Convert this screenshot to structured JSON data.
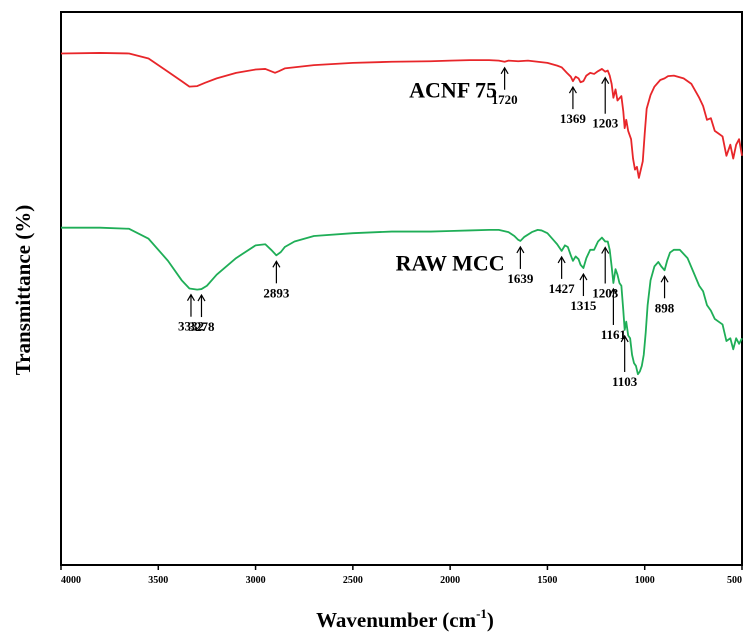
{
  "chart_data": {
    "type": "line",
    "xlabel": "Wavenumber (cm",
    "xlabel_sup": "-1",
    "xlabel_end": ")",
    "ylabel": "Transmittance (%)",
    "xlim": [
      4000,
      500
    ],
    "x_reversed": true,
    "ylim": [
      0,
      100
    ],
    "x_ticks": [
      "4000",
      "3500",
      "3000",
      "2500",
      "2000",
      "1500",
      "1000",
      "500"
    ],
    "grid": false,
    "series": [
      {
        "name": "ACNF 75",
        "color": "#e8262a",
        "points": [
          [
            4000,
            92.5
          ],
          [
            3800,
            92.6
          ],
          [
            3650,
            92.5
          ],
          [
            3550,
            91.6
          ],
          [
            3450,
            89.2
          ],
          [
            3380,
            87.5
          ],
          [
            3340,
            86.5
          ],
          [
            3300,
            86.6
          ],
          [
            3260,
            87.2
          ],
          [
            3200,
            88.0
          ],
          [
            3100,
            89.0
          ],
          [
            3000,
            89.6
          ],
          [
            2950,
            89.7
          ],
          [
            2900,
            89.0
          ],
          [
            2880,
            89.3
          ],
          [
            2850,
            89.8
          ],
          [
            2700,
            90.4
          ],
          [
            2500,
            90.8
          ],
          [
            2300,
            91.0
          ],
          [
            2100,
            91.1
          ],
          [
            2000,
            91.2
          ],
          [
            1900,
            91.3
          ],
          [
            1800,
            91.3
          ],
          [
            1750,
            91.2
          ],
          [
            1720,
            91.0
          ],
          [
            1700,
            91.2
          ],
          [
            1650,
            91.1
          ],
          [
            1600,
            91.2
          ],
          [
            1550,
            91.0
          ],
          [
            1500,
            90.8
          ],
          [
            1450,
            90.3
          ],
          [
            1427,
            90.0
          ],
          [
            1400,
            89.0
          ],
          [
            1380,
            88.3
          ],
          [
            1369,
            87.5
          ],
          [
            1355,
            88.3
          ],
          [
            1340,
            88.0
          ],
          [
            1330,
            87.3
          ],
          [
            1315,
            87.5
          ],
          [
            1300,
            88.5
          ],
          [
            1280,
            89.0
          ],
          [
            1260,
            88.8
          ],
          [
            1240,
            89.3
          ],
          [
            1220,
            89.7
          ],
          [
            1203,
            89.2
          ],
          [
            1190,
            89.4
          ],
          [
            1180,
            88.5
          ],
          [
            1170,
            87.0
          ],
          [
            1161,
            84.5
          ],
          [
            1150,
            86.0
          ],
          [
            1140,
            84.0
          ],
          [
            1120,
            84.8
          ],
          [
            1110,
            82.0
          ],
          [
            1103,
            79.0
          ],
          [
            1095,
            80.5
          ],
          [
            1085,
            78.5
          ],
          [
            1070,
            77.0
          ],
          [
            1060,
            73.5
          ],
          [
            1050,
            71.5
          ],
          [
            1040,
            72.0
          ],
          [
            1030,
            70.0
          ],
          [
            1020,
            71.5
          ],
          [
            1010,
            73.0
          ],
          [
            1000,
            78.0
          ],
          [
            990,
            82.5
          ],
          [
            970,
            85.0
          ],
          [
            950,
            86.5
          ],
          [
            920,
            87.7
          ],
          [
            898,
            88.0
          ],
          [
            880,
            88.4
          ],
          [
            850,
            88.5
          ],
          [
            800,
            88.0
          ],
          [
            760,
            87.0
          ],
          [
            720,
            84.5
          ],
          [
            700,
            83.0
          ],
          [
            680,
            80.5
          ],
          [
            660,
            80.8
          ],
          [
            640,
            78.5
          ],
          [
            620,
            78.0
          ],
          [
            600,
            77.5
          ],
          [
            580,
            74.0
          ],
          [
            560,
            76.0
          ],
          [
            545,
            73.5
          ],
          [
            530,
            76.0
          ],
          [
            515,
            77.0
          ],
          [
            500,
            74.0
          ]
        ]
      },
      {
        "name": "RAW MCC",
        "color": "#1fae57",
        "points": [
          [
            4000,
            61.0
          ],
          [
            3800,
            61.0
          ],
          [
            3650,
            60.8
          ],
          [
            3550,
            59.0
          ],
          [
            3450,
            55.0
          ],
          [
            3380,
            51.5
          ],
          [
            3340,
            50.0
          ],
          [
            3300,
            49.8
          ],
          [
            3278,
            49.9
          ],
          [
            3250,
            50.5
          ],
          [
            3200,
            52.5
          ],
          [
            3100,
            55.5
          ],
          [
            3000,
            57.8
          ],
          [
            2950,
            58.0
          ],
          [
            2920,
            57.0
          ],
          [
            2893,
            56.0
          ],
          [
            2870,
            56.6
          ],
          [
            2850,
            57.5
          ],
          [
            2800,
            58.5
          ],
          [
            2700,
            59.5
          ],
          [
            2500,
            60.0
          ],
          [
            2300,
            60.3
          ],
          [
            2100,
            60.3
          ],
          [
            2000,
            60.4
          ],
          [
            1900,
            60.5
          ],
          [
            1800,
            60.6
          ],
          [
            1750,
            60.6
          ],
          [
            1700,
            60.2
          ],
          [
            1670,
            59.5
          ],
          [
            1650,
            58.8
          ],
          [
            1639,
            58.6
          ],
          [
            1620,
            59.3
          ],
          [
            1580,
            60.2
          ],
          [
            1550,
            60.6
          ],
          [
            1530,
            60.5
          ],
          [
            1500,
            60.0
          ],
          [
            1470,
            58.8
          ],
          [
            1450,
            58.0
          ],
          [
            1427,
            56.8
          ],
          [
            1410,
            57.8
          ],
          [
            1395,
            57.5
          ],
          [
            1380,
            56.0
          ],
          [
            1369,
            55.0
          ],
          [
            1355,
            55.8
          ],
          [
            1340,
            55.3
          ],
          [
            1330,
            54.3
          ],
          [
            1315,
            53.7
          ],
          [
            1300,
            55.5
          ],
          [
            1280,
            57.0
          ],
          [
            1260,
            57.0
          ],
          [
            1240,
            58.5
          ],
          [
            1220,
            59.2
          ],
          [
            1203,
            58.5
          ],
          [
            1190,
            58.5
          ],
          [
            1180,
            57.0
          ],
          [
            1170,
            54.0
          ],
          [
            1161,
            51.0
          ],
          [
            1150,
            53.5
          ],
          [
            1140,
            52.5
          ],
          [
            1130,
            51.0
          ],
          [
            1120,
            50.5
          ],
          [
            1110,
            46.0
          ],
          [
            1103,
            42.5
          ],
          [
            1095,
            44.0
          ],
          [
            1085,
            41.5
          ],
          [
            1075,
            41.0
          ],
          [
            1065,
            38.0
          ],
          [
            1055,
            36.5
          ],
          [
            1045,
            36.0
          ],
          [
            1035,
            34.5
          ],
          [
            1025,
            35.0
          ],
          [
            1015,
            36.0
          ],
          [
            1005,
            38.0
          ],
          [
            995,
            42.0
          ],
          [
            985,
            47.0
          ],
          [
            970,
            51.5
          ],
          [
            950,
            54.0
          ],
          [
            930,
            54.8
          ],
          [
            915,
            54.0
          ],
          [
            898,
            53.3
          ],
          [
            885,
            55.0
          ],
          [
            870,
            56.5
          ],
          [
            850,
            57.0
          ],
          [
            820,
            57.0
          ],
          [
            780,
            55.5
          ],
          [
            750,
            53.0
          ],
          [
            720,
            50.5
          ],
          [
            700,
            49.5
          ],
          [
            680,
            47.0
          ],
          [
            660,
            46.0
          ],
          [
            640,
            44.5
          ],
          [
            620,
            44.0
          ],
          [
            600,
            43.5
          ],
          [
            580,
            40.5
          ],
          [
            560,
            41.0
          ],
          [
            545,
            39.0
          ],
          [
            530,
            41.0
          ],
          [
            515,
            40.0
          ],
          [
            500,
            41.0
          ]
        ]
      }
    ],
    "series_labels": [
      {
        "text": "ACNF 75",
        "x": 1985,
        "y": 84.5
      },
      {
        "text": "RAW MCC",
        "x": 2000,
        "y": 53.3
      }
    ],
    "annotations": [
      {
        "text": "1720",
        "wavenumber": 1720,
        "series": "ACNF 75",
        "direction": "below"
      },
      {
        "text": "1369",
        "wavenumber": 1369,
        "series": "ACNF 75",
        "direction": "below"
      },
      {
        "text": "1203",
        "wavenumber": 1203,
        "series": "ACNF 75",
        "direction": "below-long"
      },
      {
        "text": "3332",
        "wavenumber": 3332,
        "series": "RAW MCC",
        "direction": "below"
      },
      {
        "text": "3278",
        "wavenumber": 3278,
        "series": "RAW MCC",
        "direction": "below"
      },
      {
        "text": "2893",
        "wavenumber": 2893,
        "series": "RAW MCC",
        "direction": "below"
      },
      {
        "text": "1639",
        "wavenumber": 1639,
        "series": "RAW MCC",
        "direction": "below"
      },
      {
        "text": "1427",
        "wavenumber": 1427,
        "series": "RAW MCC",
        "direction": "below"
      },
      {
        "text": "1315",
        "wavenumber": 1315,
        "series": "RAW MCC",
        "direction": "below"
      },
      {
        "text": "1203",
        "wavenumber": 1203,
        "series": "RAW MCC",
        "direction": "below-long"
      },
      {
        "text": "1161",
        "wavenumber": 1161,
        "series": "RAW MCC",
        "direction": "below-long"
      },
      {
        "text": "1103",
        "wavenumber": 1103,
        "series": "RAW MCC",
        "direction": "below-long"
      },
      {
        "text": "898",
        "wavenumber": 898,
        "series": "RAW MCC",
        "direction": "below"
      }
    ]
  }
}
